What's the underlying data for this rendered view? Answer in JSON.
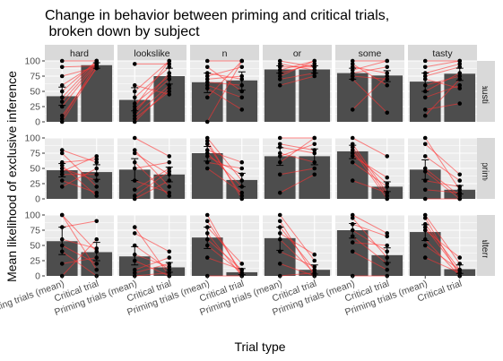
{
  "chart_data": {
    "type": "bar",
    "title_line1": "Change in behavior between priming and critical trials,",
    "title_line2": " broken down by subject",
    "xlabel": "Trial type",
    "ylabel": "Mean likelihood of exclusive inference",
    "categories": [
      "Priming trials (mean)",
      "Critical trial"
    ],
    "ylim": [
      0,
      100
    ],
    "yticks": [
      0,
      25,
      50,
      75,
      100
    ],
    "columns": [
      "hard",
      "lookslike",
      "n",
      "or",
      "some",
      "tasty"
    ],
    "rows": [
      "exhaustive",
      "noprime",
      "trong_alternative"
    ],
    "colors": {
      "panel": "#ebebeb",
      "grid": "#ffffff",
      "strip": "#d9d9d9",
      "bar": "#4d4d4d",
      "line": "#ff3333",
      "point": "#000000"
    },
    "panels": [
      {
        "row": "exhaustive",
        "col": "hard",
        "bars": [
          42,
          93
        ],
        "err_prime": [
          27,
          57
        ],
        "err_crit": [
          88,
          97
        ],
        "pairs": [
          [
            0,
            90
          ],
          [
            25,
            95
          ],
          [
            50,
            100
          ],
          [
            75,
            90
          ],
          [
            100,
            100
          ],
          [
            10,
            88
          ],
          [
            90,
            92
          ],
          [
            33,
            97
          ],
          [
            60,
            96
          ],
          [
            5,
            95
          ],
          [
            40,
            100
          ]
        ]
      },
      {
        "row": "exhaustive",
        "col": "lookslike",
        "bars": [
          36,
          75
        ],
        "err_prime": [
          18,
          56
        ],
        "err_crit": [
          62,
          88
        ],
        "pairs": [
          [
            0,
            55
          ],
          [
            10,
            60
          ],
          [
            20,
            70
          ],
          [
            30,
            75
          ],
          [
            40,
            90
          ],
          [
            50,
            100
          ],
          [
            95,
            95
          ],
          [
            5,
            50
          ],
          [
            15,
            80
          ],
          [
            25,
            100
          ],
          [
            60,
            45
          ]
        ]
      },
      {
        "row": "exhaustive",
        "col": "n",
        "bars": [
          65,
          68
        ],
        "err_prime": [
          48,
          80
        ],
        "err_crit": [
          52,
          82
        ],
        "pairs": [
          [
            0,
            100
          ],
          [
            40,
            100
          ],
          [
            55,
            20
          ],
          [
            65,
            60
          ],
          [
            70,
            75
          ],
          [
            75,
            90
          ],
          [
            90,
            50
          ],
          [
            100,
            100
          ],
          [
            80,
            70
          ],
          [
            60,
            40
          ]
        ]
      },
      {
        "row": "exhaustive",
        "col": "or",
        "bars": [
          86,
          86
        ],
        "err_prime": [
          80,
          92
        ],
        "err_crit": [
          80,
          92
        ],
        "pairs": [
          [
            60,
            75
          ],
          [
            75,
            100
          ],
          [
            80,
            95
          ],
          [
            90,
            90
          ],
          [
            95,
            85
          ],
          [
            100,
            90
          ],
          [
            85,
            100
          ],
          [
            70,
            80
          ]
        ]
      },
      {
        "row": "exhaustive",
        "col": "some",
        "bars": [
          80,
          76
        ],
        "err_prime": [
          70,
          88
        ],
        "err_crit": [
          66,
          84
        ],
        "pairs": [
          [
            20,
            75
          ],
          [
            70,
            15
          ],
          [
            80,
            90
          ],
          [
            85,
            100
          ],
          [
            90,
            80
          ],
          [
            95,
            60
          ],
          [
            100,
            100
          ],
          [
            75,
            70
          ]
        ]
      },
      {
        "row": "exhaustive",
        "col": "tasty",
        "bars": [
          66,
          79
        ],
        "err_prime": [
          50,
          80
        ],
        "err_crit": [
          68,
          88
        ],
        "pairs": [
          [
            20,
            30
          ],
          [
            40,
            60
          ],
          [
            50,
            80
          ],
          [
            60,
            75
          ],
          [
            75,
            90
          ],
          [
            80,
            95
          ],
          [
            90,
            100
          ],
          [
            100,
            100
          ],
          [
            10,
            70
          ],
          [
            70,
            55
          ]
        ]
      },
      {
        "row": "noprime",
        "col": "hard",
        "bars": [
          47,
          44
        ],
        "err_prime": [
          36,
          58
        ],
        "err_crit": [
          32,
          56
        ],
        "pairs": [
          [
            20,
            50
          ],
          [
            30,
            10
          ],
          [
            45,
            70
          ],
          [
            50,
            30
          ],
          [
            60,
            65
          ],
          [
            75,
            20
          ],
          [
            80,
            60
          ],
          [
            40,
            40
          ],
          [
            55,
            5
          ]
        ]
      },
      {
        "row": "noprime",
        "col": "lookslike",
        "bars": [
          48,
          40
        ],
        "err_prime": [
          30,
          66
        ],
        "err_crit": [
          28,
          52
        ],
        "pairs": [
          [
            0,
            30
          ],
          [
            15,
            50
          ],
          [
            30,
            10
          ],
          [
            50,
            60
          ],
          [
            75,
            40
          ],
          [
            80,
            20
          ],
          [
            100,
            70
          ],
          [
            5,
            45
          ],
          [
            60,
            5
          ]
        ]
      },
      {
        "row": "noprime",
        "col": "n",
        "bars": [
          75,
          31
        ],
        "err_prime": [
          62,
          86
        ],
        "err_crit": [
          20,
          42
        ],
        "pairs": [
          [
            50,
            10
          ],
          [
            70,
            40
          ],
          [
            80,
            60
          ],
          [
            90,
            5
          ],
          [
            100,
            30
          ],
          [
            75,
            20
          ],
          [
            60,
            50
          ],
          [
            95,
            0
          ]
        ]
      },
      {
        "row": "noprime",
        "col": "or",
        "bars": [
          70,
          70
        ],
        "err_prime": [
          55,
          84
        ],
        "err_crit": [
          56,
          82
        ],
        "pairs": [
          [
            10,
            40
          ],
          [
            60,
            100
          ],
          [
            70,
            90
          ],
          [
            75,
            60
          ],
          [
            85,
            75
          ],
          [
            90,
            80
          ],
          [
            100,
            100
          ],
          [
            40,
            50
          ]
        ]
      },
      {
        "row": "noprime",
        "col": "some",
        "bars": [
          78,
          20
        ],
        "err_prime": [
          66,
          88
        ],
        "err_crit": [
          12,
          28
        ],
        "pairs": [
          [
            30,
            10
          ],
          [
            60,
            20
          ],
          [
            70,
            35
          ],
          [
            80,
            0
          ],
          [
            90,
            10
          ],
          [
            100,
            70
          ],
          [
            85,
            5
          ],
          [
            75,
            25
          ]
        ]
      },
      {
        "row": "noprime",
        "col": "tasty",
        "bars": [
          48,
          15
        ],
        "err_prime": [
          32,
          64
        ],
        "err_crit": [
          8,
          22
        ],
        "pairs": [
          [
            0,
            0
          ],
          [
            15,
            10
          ],
          [
            30,
            20
          ],
          [
            50,
            5
          ],
          [
            70,
            30
          ],
          [
            90,
            40
          ],
          [
            100,
            15
          ],
          [
            45,
            0
          ]
        ]
      },
      {
        "row": "trong_alternative",
        "col": "hard",
        "bars": [
          57,
          39
        ],
        "err_prime": [
          35,
          80
        ],
        "err_crit": [
          25,
          55
        ],
        "pairs": [
          [
            0,
            60
          ],
          [
            20,
            30
          ],
          [
            40,
            0
          ],
          [
            60,
            45
          ],
          [
            80,
            90
          ],
          [
            100,
            40
          ],
          [
            50,
            20
          ],
          [
            100,
            10
          ]
        ]
      },
      {
        "row": "trong_alternative",
        "col": "lookslike",
        "bars": [
          32,
          14
        ],
        "err_prime": [
          18,
          48
        ],
        "err_crit": [
          6,
          22
        ],
        "pairs": [
          [
            0,
            5
          ],
          [
            10,
            30
          ],
          [
            25,
            0
          ],
          [
            35,
            15
          ],
          [
            50,
            10
          ],
          [
            70,
            40
          ],
          [
            80,
            0
          ],
          [
            5,
            20
          ]
        ]
      },
      {
        "row": "trong_alternative",
        "col": "n",
        "bars": [
          63,
          6
        ],
        "err_prime": [
          45,
          80
        ],
        "err_crit": [
          2,
          12
        ],
        "pairs": [
          [
            0,
            0
          ],
          [
            30,
            10
          ],
          [
            50,
            5
          ],
          [
            70,
            0
          ],
          [
            80,
            20
          ],
          [
            90,
            5
          ],
          [
            100,
            0
          ],
          [
            60,
            10
          ]
        ]
      },
      {
        "row": "trong_alternative",
        "col": "or",
        "bars": [
          62,
          10
        ],
        "err_prime": [
          42,
          80
        ],
        "err_crit": [
          3,
          18
        ],
        "pairs": [
          [
            0,
            5
          ],
          [
            20,
            0
          ],
          [
            40,
            15
          ],
          [
            70,
            35
          ],
          [
            80,
            10
          ],
          [
            90,
            0
          ],
          [
            100,
            25
          ],
          [
            60,
            5
          ]
        ]
      },
      {
        "row": "trong_alternative",
        "col": "some",
        "bars": [
          75,
          34
        ],
        "err_prime": [
          62,
          86
        ],
        "err_crit": [
          22,
          46
        ],
        "pairs": [
          [
            40,
            10
          ],
          [
            55,
            50
          ],
          [
            65,
            20
          ],
          [
            75,
            40
          ],
          [
            85,
            65
          ],
          [
            95,
            30
          ],
          [
            100,
            70
          ],
          [
            0,
            0
          ]
        ]
      },
      {
        "row": "trong_alternative",
        "col": "tasty",
        "bars": [
          72,
          11
        ],
        "err_prime": [
          58,
          84
        ],
        "err_crit": [
          4,
          18
        ],
        "pairs": [
          [
            30,
            5
          ],
          [
            50,
            10
          ],
          [
            60,
            0
          ],
          [
            75,
            30
          ],
          [
            85,
            10
          ],
          [
            95,
            0
          ],
          [
            100,
            20
          ],
          [
            80,
            5
          ]
        ]
      }
    ]
  }
}
